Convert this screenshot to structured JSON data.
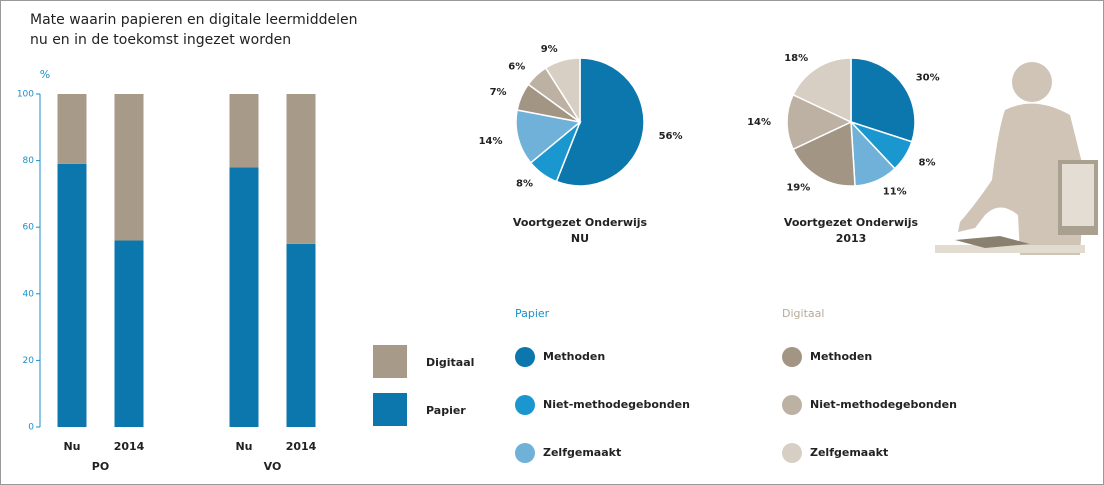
{
  "chart_data": [
    {
      "type": "bar",
      "stacked": true,
      "title": [
        "Mate waarin papieren en digitale leermiddelen",
        "nu en in de toekomst ingezet worden"
      ],
      "ylabel": "%",
      "categories": [
        "Nu",
        "2014",
        "Nu",
        "2014"
      ],
      "groups": [
        "PO",
        "VO"
      ],
      "series": [
        {
          "name": "Papier",
          "color": "#0b77ad",
          "values": [
            79,
            56,
            78,
            55
          ]
        },
        {
          "name": "Digitaal",
          "color": "#a89a88",
          "values": [
            21,
            44,
            22,
            45
          ]
        }
      ],
      "ylim": [
        0,
        100
      ],
      "yticks": [
        0,
        20,
        40,
        60,
        80,
        100
      ],
      "grid": false,
      "legend": "right"
    },
    {
      "type": "pie",
      "title": [
        "Voortgezet Onderwijs",
        "NU"
      ],
      "values": [
        56,
        8,
        14,
        7,
        6,
        9
      ],
      "value_labels": [
        "56%",
        "8%",
        "14%",
        "7%",
        "6%",
        "9%"
      ],
      "colors": [
        "#0b77ad",
        "#1b97cf",
        "#6fb1d8",
        "#a39583",
        "#bcb1a3",
        "#d8cfc4"
      ]
    },
    {
      "type": "pie",
      "title": [
        "Voortgezet Onderwijs",
        "2013"
      ],
      "values": [
        30,
        8,
        11,
        19,
        14,
        18
      ],
      "value_labels": [
        "30%",
        "8%",
        "11%",
        "19%",
        "14%",
        "18%"
      ],
      "colors": [
        "#0b77ad",
        "#1b97cf",
        "#6fb1d8",
        "#a39583",
        "#bcb1a3",
        "#d8cfc4"
      ]
    }
  ],
  "legend": {
    "groups": [
      {
        "title": "Papier",
        "color": "#1b8fc9",
        "items": [
          {
            "name": "Methoden",
            "color": "#0b77ad"
          },
          {
            "name": "Niet-methodegebonden",
            "color": "#1b97cf"
          },
          {
            "name": "Zelfgemaakt",
            "color": "#6fb1d8"
          }
        ]
      },
      {
        "title": "Digitaal",
        "color": "#b8aa98",
        "items": [
          {
            "name": "Methoden",
            "color": "#a39583"
          },
          {
            "name": "Niet-methodegebonden",
            "color": "#bcb1a3"
          },
          {
            "name": "Zelfgemaakt",
            "color": "#d8cfc4"
          }
        ]
      }
    ]
  }
}
